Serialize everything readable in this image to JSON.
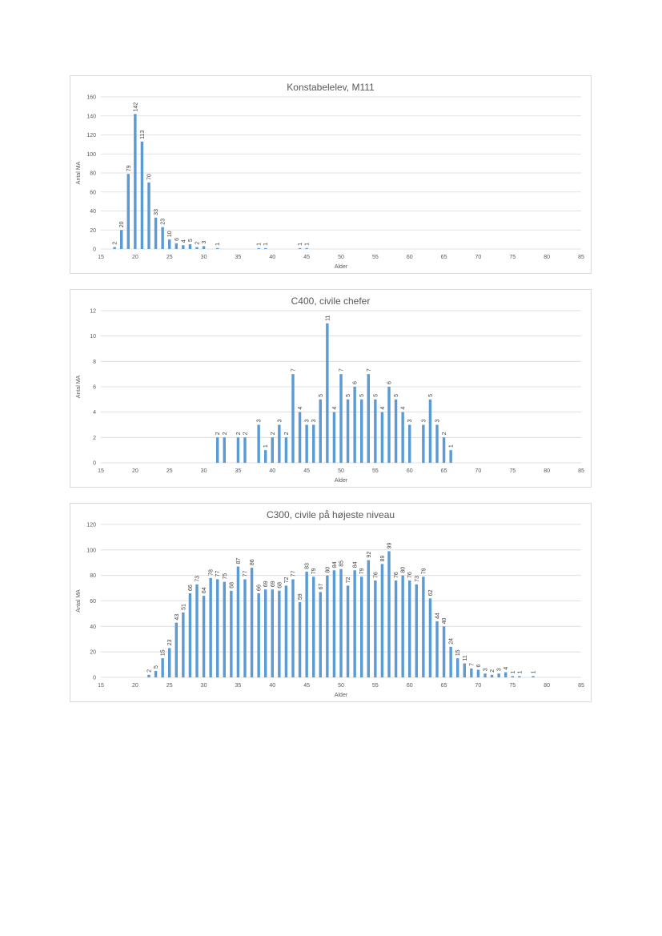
{
  "colors": {
    "bar": "#5b9bd5",
    "grid": "#d9d9d9",
    "text": "#595959",
    "border": "#d9d9d9"
  },
  "chart_data": [
    {
      "type": "bar",
      "title": "Konstabelelev, M111",
      "xlabel": "Alder",
      "ylabel": "Antal MA",
      "xlim": [
        15,
        85
      ],
      "xticks": [
        15,
        20,
        25,
        30,
        35,
        40,
        45,
        50,
        55,
        60,
        65,
        70,
        75,
        80,
        85
      ],
      "ylim": [
        0,
        160
      ],
      "yticks": [
        0,
        20,
        40,
        60,
        80,
        100,
        120,
        140,
        160
      ],
      "grid": true,
      "x": [
        17,
        18,
        19,
        20,
        21,
        22,
        23,
        24,
        25,
        26,
        27,
        28,
        29,
        30,
        32,
        38,
        39,
        44,
        45
      ],
      "values": [
        2,
        20,
        79,
        142,
        113,
        70,
        33,
        23,
        10,
        6,
        4,
        5,
        2,
        3,
        1,
        1,
        1,
        1,
        1
      ]
    },
    {
      "type": "bar",
      "title": "C400, civile chefer",
      "xlabel": "Alder",
      "ylabel": "Antal MA",
      "xlim": [
        15,
        85
      ],
      "xticks": [
        15,
        20,
        25,
        30,
        35,
        40,
        45,
        50,
        55,
        60,
        65,
        70,
        75,
        80,
        85
      ],
      "ylim": [
        0,
        12
      ],
      "yticks": [
        0,
        2,
        4,
        6,
        8,
        10,
        12
      ],
      "grid": true,
      "x": [
        32,
        33,
        35,
        36,
        38,
        39,
        40,
        41,
        42,
        43,
        44,
        45,
        46,
        47,
        48,
        49,
        50,
        51,
        52,
        53,
        54,
        55,
        56,
        57,
        58,
        59,
        60,
        62,
        63,
        64,
        65,
        66
      ],
      "values": [
        2,
        2,
        2,
        2,
        3,
        1,
        2,
        3,
        2,
        7,
        4,
        3,
        3,
        5,
        11,
        4,
        7,
        5,
        6,
        5,
        7,
        5,
        4,
        6,
        5,
        4,
        3,
        3,
        5,
        3,
        2,
        1
      ]
    },
    {
      "type": "bar",
      "title": "C300, civile på højeste niveau",
      "xlabel": "Alder",
      "ylabel": "Antal MA",
      "xlim": [
        15,
        85
      ],
      "xticks": [
        15,
        20,
        25,
        30,
        35,
        40,
        45,
        50,
        55,
        60,
        65,
        70,
        75,
        80,
        85
      ],
      "ylim": [
        0,
        120
      ],
      "yticks": [
        0,
        20,
        40,
        60,
        80,
        100,
        120
      ],
      "grid": true,
      "x": [
        22,
        23,
        24,
        25,
        26,
        27,
        28,
        29,
        30,
        31,
        32,
        33,
        34,
        35,
        36,
        37,
        38,
        39,
        40,
        41,
        42,
        43,
        44,
        45,
        46,
        47,
        48,
        49,
        50,
        51,
        52,
        53,
        54,
        55,
        56,
        57,
        58,
        59,
        60,
        61,
        62,
        63,
        64,
        65,
        66,
        67,
        68,
        69,
        70,
        71,
        72,
        73,
        74,
        75,
        76,
        78
      ],
      "values": [
        2,
        5,
        15,
        23,
        43,
        51,
        66,
        73,
        64,
        78,
        77,
        75,
        68,
        87,
        77,
        86,
        66,
        69,
        69,
        68,
        72,
        77,
        59,
        83,
        79,
        67,
        80,
        84,
        85,
        72,
        84,
        79,
        92,
        76,
        89,
        99,
        76,
        80,
        76,
        73,
        79,
        62,
        44,
        40,
        24,
        15,
        11,
        7,
        6,
        3,
        2,
        3,
        4,
        1,
        1,
        1
      ]
    }
  ]
}
